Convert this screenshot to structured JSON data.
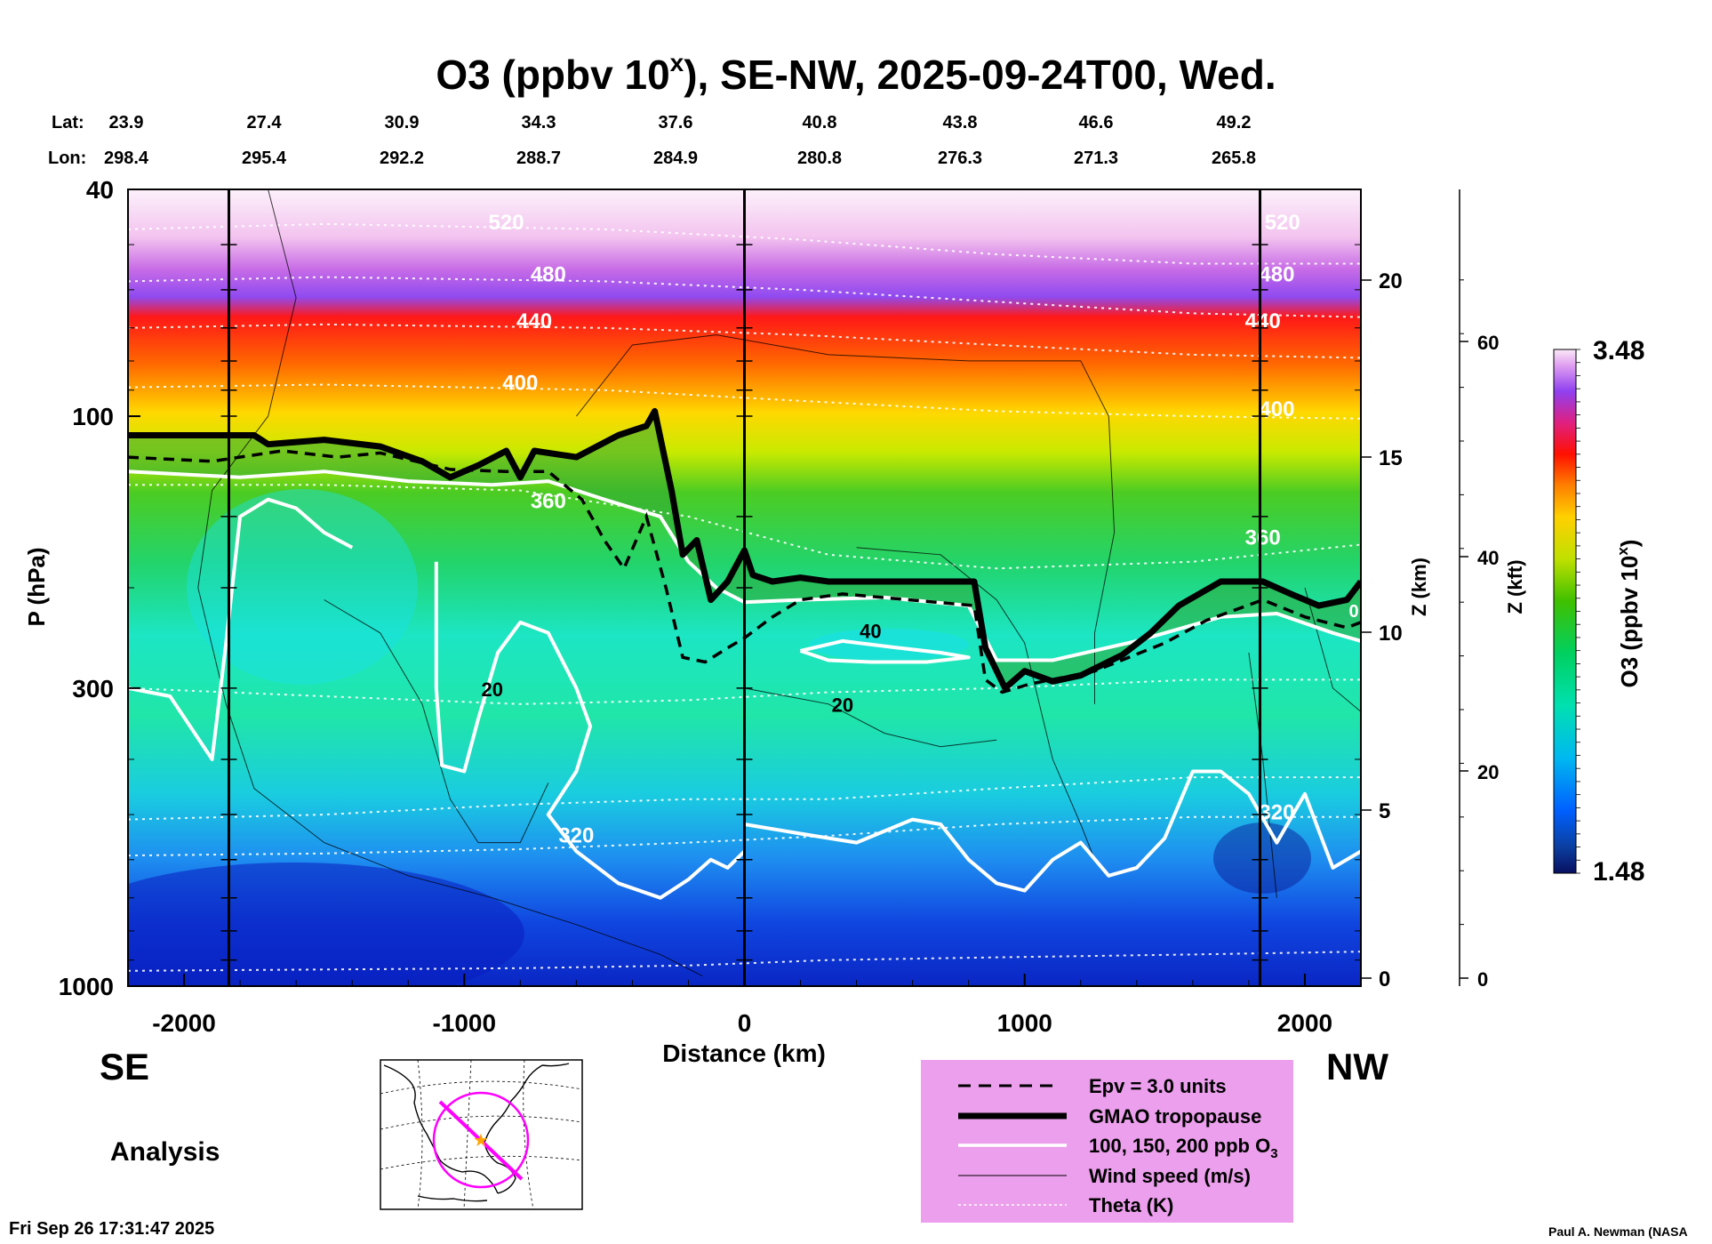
{
  "title": {
    "prefix": "O3 (ppbv 10",
    "sup": "x",
    "suffix": "), SE-NW, 2025-09-24T00, Wed."
  },
  "cross_section": {
    "lat_label": "Lat:",
    "lon_label": "Lon:",
    "lat": [
      "23.9",
      "27.4",
      "30.9",
      "34.3",
      "37.6",
      "40.8",
      "43.8",
      "46.6",
      "49.2"
    ],
    "lon": [
      "298.4",
      "295.4",
      "292.2",
      "288.7",
      "284.9",
      "280.8",
      "276.3",
      "271.3",
      "265.8"
    ]
  },
  "chart_data": {
    "type": "heatmap",
    "title": "O3 (ppbv 10^x), SE-NW, 2025-09-24T00, Wed.",
    "xlabel": "Distance (km)",
    "ylabel": "P (hPa)",
    "xlim": [
      -2200,
      2200
    ],
    "ylim": [
      1000,
      40
    ],
    "y_scale": "log",
    "x_ticks": [
      -2000,
      -1000,
      0,
      1000,
      2000
    ],
    "x_tick_labels": [
      "-2000",
      "-1000",
      "0",
      "1000",
      "2000"
    ],
    "y_ticks": [
      40,
      100,
      300,
      1000
    ],
    "y_tick_labels": [
      "40",
      "100",
      "300",
      "1000"
    ],
    "z_km_axis": {
      "label": "Z (km)",
      "ticks": [
        "0",
        "5",
        "10",
        "15",
        "20"
      ]
    },
    "z_kft_axis": {
      "label": "Z (kft)",
      "ticks": [
        "0",
        "20",
        "40",
        "60"
      ]
    },
    "colorbar": {
      "label": "O3 (ppbv 10",
      "label_sup": "x",
      "label_end": ")",
      "min": "1.48",
      "max": "3.48"
    },
    "theta_labels": [
      "520",
      "480",
      "440",
      "400",
      "360",
      "320",
      "520",
      "480",
      "440",
      "400",
      "360",
      "320"
    ],
    "wind_labels": [
      "20",
      "20",
      "40"
    ],
    "right_theta_partial": "0",
    "tropopause": [
      [
        -2200,
        108
      ],
      [
        -1750,
        108
      ],
      [
        -1700,
        112
      ],
      [
        -1500,
        110
      ],
      [
        -1300,
        113
      ],
      [
        -1150,
        120
      ],
      [
        -1050,
        128
      ],
      [
        -950,
        122
      ],
      [
        -850,
        115
      ],
      [
        -800,
        128
      ],
      [
        -750,
        115
      ],
      [
        -600,
        118
      ],
      [
        -450,
        108
      ],
      [
        -350,
        104
      ],
      [
        -320,
        98
      ],
      [
        -260,
        135
      ],
      [
        -220,
        175
      ],
      [
        -170,
        165
      ],
      [
        -120,
        210
      ],
      [
        -60,
        195
      ],
      [
        0,
        172
      ],
      [
        30,
        190
      ],
      [
        100,
        195
      ],
      [
        200,
        192
      ],
      [
        300,
        195
      ],
      [
        820,
        195
      ],
      [
        860,
        255
      ],
      [
        930,
        300
      ],
      [
        1000,
        280
      ],
      [
        1100,
        292
      ],
      [
        1200,
        285
      ],
      [
        1350,
        262
      ],
      [
        1450,
        240
      ],
      [
        1550,
        215
      ],
      [
        1700,
        195
      ],
      [
        1850,
        195
      ],
      [
        1950,
        205
      ],
      [
        2050,
        215
      ],
      [
        2150,
        210
      ],
      [
        2200,
        195
      ]
    ],
    "epv_contour": [
      [
        -2200,
        118
      ],
      [
        -1900,
        120
      ],
      [
        -1650,
        115
      ],
      [
        -1450,
        118
      ],
      [
        -1300,
        116
      ],
      [
        -1050,
        124
      ],
      [
        -850,
        125
      ],
      [
        -700,
        125
      ],
      [
        -580,
        140
      ],
      [
        -500,
        165
      ],
      [
        -430,
        185
      ],
      [
        -350,
        150
      ],
      [
        -280,
        200
      ],
      [
        -220,
        265
      ],
      [
        -140,
        270
      ],
      [
        -60,
        255
      ],
      [
        0,
        245
      ],
      [
        100,
        225
      ],
      [
        200,
        210
      ],
      [
        350,
        205
      ],
      [
        820,
        215
      ],
      [
        860,
        290
      ],
      [
        920,
        305
      ],
      [
        1020,
        295
      ],
      [
        1250,
        280
      ],
      [
        1500,
        250
      ],
      [
        1650,
        228
      ],
      [
        1850,
        210
      ],
      [
        2000,
        225
      ],
      [
        2150,
        235
      ],
      [
        2200,
        230
      ]
    ],
    "ozone_100_contour": [
      [
        -2200,
        125
      ],
      [
        -1800,
        128
      ],
      [
        -1500,
        125
      ],
      [
        -1200,
        130
      ],
      [
        -900,
        132
      ],
      [
        -700,
        130
      ],
      [
        -500,
        140
      ],
      [
        -300,
        150
      ],
      [
        -200,
        180
      ],
      [
        -100,
        200
      ],
      [
        0,
        212
      ],
      [
        200,
        210
      ],
      [
        500,
        208
      ],
      [
        800,
        215
      ],
      [
        900,
        268
      ],
      [
        1100,
        268
      ],
      [
        1400,
        248
      ],
      [
        1700,
        225
      ],
      [
        1900,
        222
      ],
      [
        2100,
        240
      ],
      [
        2200,
        248
      ]
    ],
    "epv_label": "Epv = 3.0 units"
  },
  "legend": {
    "items": [
      "Epv = 3.0 units",
      "GMAO tropopause",
      "100, 150, 200 ppb O",
      "Wind speed (m/s)",
      "Theta (K)"
    ],
    "o3_sub": "3"
  },
  "direction": {
    "left": "SE",
    "right": "NW"
  },
  "analysis_label": "Analysis",
  "timestamp": "Fri Sep 26 17:31:47 2025",
  "credit": "Paul A. Newman (NASA",
  "colors": {
    "stratosphere_top": "#fbe8f8",
    "ozone_peak": "#ff2000",
    "tropical_low": "#0a2ccf",
    "legend_bg": "#ec9fec",
    "map_track": "#ff00ff"
  }
}
